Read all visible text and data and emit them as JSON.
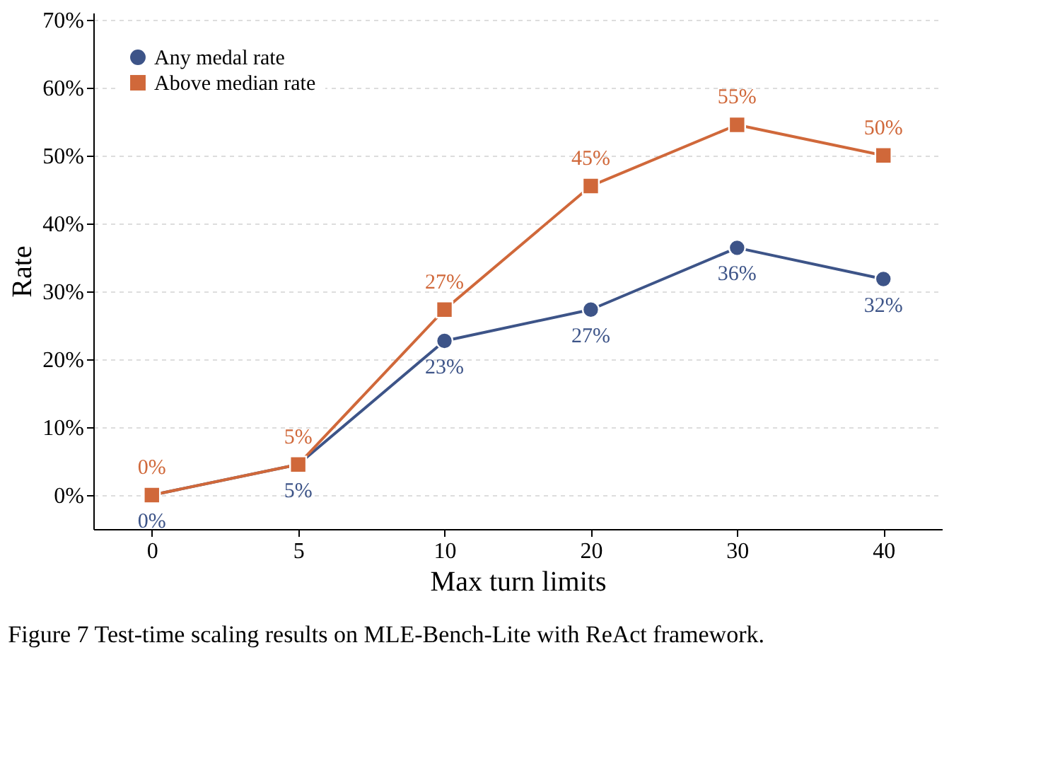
{
  "chart_data": {
    "type": "line",
    "xlabel": "Max turn limits",
    "ylabel": "Rate",
    "categories": [
      "0",
      "5",
      "10",
      "20",
      "30",
      "40"
    ],
    "series": [
      {
        "name": "Any medal rate",
        "color": "#3d5488",
        "marker": "circle",
        "values": [
          0,
          4.5,
          22.7,
          27.3,
          36.4,
          31.8
        ],
        "value_labels": [
          "0%",
          "5%",
          "23%",
          "27%",
          "36%",
          "32%"
        ]
      },
      {
        "name": "Above median rate",
        "color": "#d0683a",
        "marker": "square",
        "values": [
          0,
          4.5,
          27.3,
          45.5,
          54.5,
          50.0
        ],
        "value_labels": [
          "0%",
          "5%",
          "27%",
          "45%",
          "55%",
          "50%"
        ]
      }
    ],
    "ylim": [
      -5,
      71
    ],
    "yticks": [
      {
        "value": 0,
        "label": "0%"
      },
      {
        "value": 10,
        "label": "10%"
      },
      {
        "value": 20,
        "label": "20%"
      },
      {
        "value": 30,
        "label": "30%"
      },
      {
        "value": 40,
        "label": "40%"
      },
      {
        "value": 50,
        "label": "50%"
      },
      {
        "value": 60,
        "label": "60%"
      },
      {
        "value": 70,
        "label": "70%"
      }
    ],
    "grid": "y",
    "legend": "top left",
    "line_style": "solid",
    "annotations": [
      "Figure 7  Test-time scaling results on MLE-Bench-Lite with ReAct framework."
    ]
  }
}
